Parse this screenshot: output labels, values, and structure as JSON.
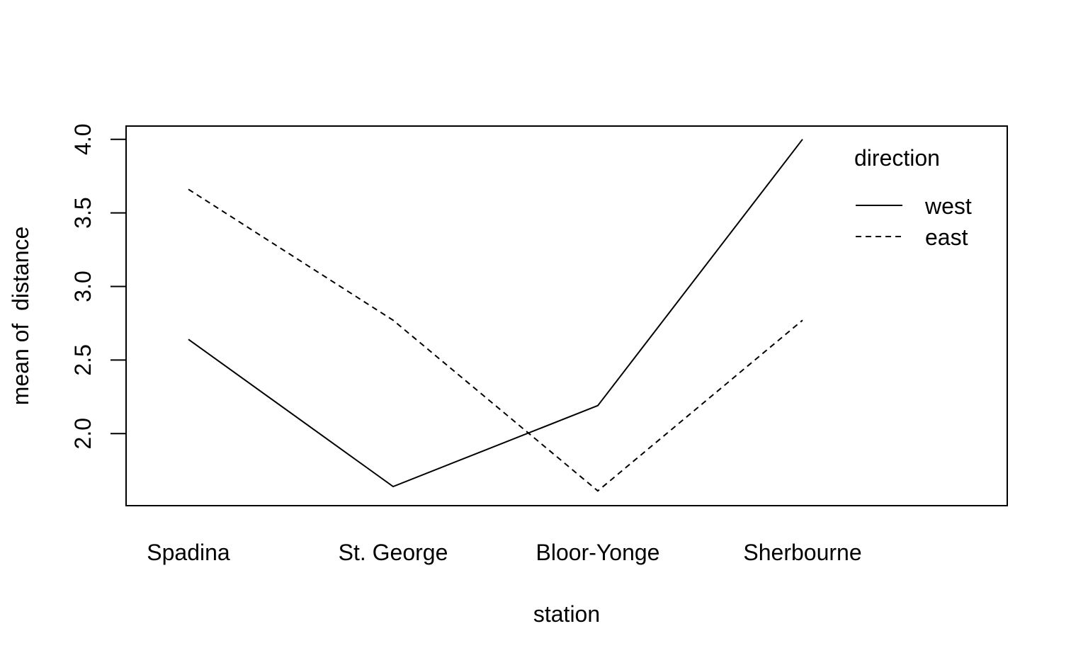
{
  "chart_data": {
    "type": "line",
    "title": "",
    "xlabel": "station",
    "ylabel": "mean of  distance",
    "categories": [
      "Spadina",
      "St. George",
      "Bloor-Yonge",
      "Sherbourne"
    ],
    "ylim": [
      1.51,
      4.09
    ],
    "yticks": [
      2.0,
      2.5,
      3.0,
      3.5,
      4.0
    ],
    "ytick_labels": [
      "2.0",
      "2.5",
      "3.0",
      "3.5",
      "4.0"
    ],
    "grid": false,
    "legend": {
      "title": "direction",
      "placement": "top-right",
      "entries": [
        {
          "label": "west",
          "linestyle": "solid"
        },
        {
          "label": "east",
          "linestyle": "dashed"
        }
      ]
    },
    "series": [
      {
        "name": "west",
        "linestyle": "solid",
        "color": "#000000",
        "values": [
          2.64,
          1.64,
          2.19,
          4.0
        ]
      },
      {
        "name": "east",
        "linestyle": "dashed",
        "color": "#000000",
        "values": [
          3.66,
          2.77,
          1.61,
          2.77
        ]
      }
    ]
  }
}
